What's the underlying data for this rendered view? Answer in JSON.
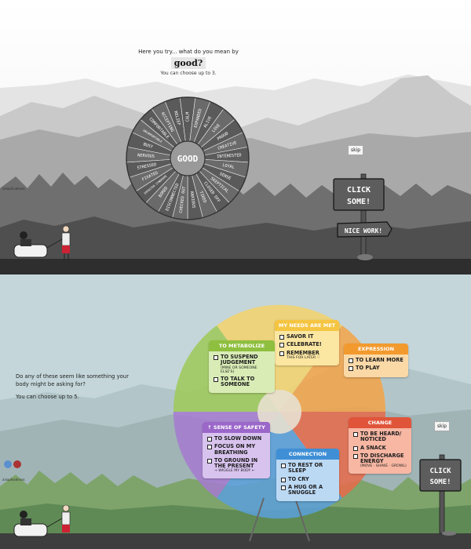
{
  "screen1": {
    "prompt_line1": "Here you try... what do you mean by",
    "prompt_word": "good?",
    "prompt_sub": "You can choose up to 3.",
    "skip_label": "skip",
    "credit": "aisophiadevos",
    "wheel_center": "GOOD",
    "wheel_words": [
      "CALM",
      "EXPANDED",
      "ALIVE",
      "LOVE",
      "PROUD",
      "CREATIVE",
      "INTERESTED",
      "LOYAL",
      "SENSE",
      "SKEPTICAL",
      "CLOSED OFF",
      "TIRED",
      "ANXIOUS",
      "CHECKED OUT",
      "DISCONNECTED",
      "BORED",
      "IMPOSTER SYNDROME",
      "FIXATED",
      "STRESSED",
      "NERVOUS",
      "BUSY",
      "UNCOMFORTABLE",
      "COMFORTABLE",
      "ACCEPTING",
      "RELIEF"
    ],
    "sign_main": [
      "CLICK",
      "SOME!"
    ],
    "sign_small": "NICE WORK!"
  },
  "screen2": {
    "prompt_p1": "Do any of these seem like something your body might be asking for?",
    "prompt_p2": "You can choose up to 5.",
    "skip_label": "skip",
    "credit": "aisophiadevos",
    "sign_main": [
      "CLICK",
      "SOME!"
    ],
    "cards": {
      "needs": {
        "title": "MY NEEDS ARE MET",
        "color": "#f5c542",
        "options": [
          {
            "label": "SAVOR IT"
          },
          {
            "label": "CELEBRATE!"
          },
          {
            "label": "REMEMBER",
            "sub": "THIS FOR LATER ♡"
          }
        ]
      },
      "metabolize": {
        "title": "TO METABOLIZE",
        "color": "#8fbf3f",
        "options": [
          {
            "label": "TO SUSPEND JUDGEMENT",
            "sub": "(MINE OR SOMEONE ELSE'S)"
          },
          {
            "label": "TO TALK TO SOMEONE"
          }
        ]
      },
      "expression": {
        "title": "EXPRESSION",
        "color": "#f29a2e",
        "options": [
          {
            "label": "TO LEARN MORE"
          },
          {
            "label": "TO PLAY"
          }
        ]
      },
      "safety": {
        "title": "↑ SENSE OF SAFETY",
        "color": "#9b67c9",
        "options": [
          {
            "label": "TO SLOW DOWN"
          },
          {
            "label": "FOCUS ON MY BREATHING"
          },
          {
            "label": "TO GROUND IN THE PRESENT",
            "sub": "→ WIGGLE MY BODY ←"
          }
        ]
      },
      "change": {
        "title": "CHANGE",
        "color": "#e0553a",
        "options": [
          {
            "label": "TO BE HEARD/ NOTICED"
          },
          {
            "label": "A SNACK"
          },
          {
            "label": "TO DISCHARGE ENERGY",
            "sub": "(MOVE · SHAKE · GROWL)"
          }
        ]
      },
      "connection": {
        "title": "CONNECTION",
        "color": "#3f8fd6",
        "options": [
          {
            "label": "TO REST OR SLEEP"
          },
          {
            "label": "TO CRY"
          },
          {
            "label": "A HUG OR A SNUGGLE"
          }
        ]
      }
    }
  }
}
